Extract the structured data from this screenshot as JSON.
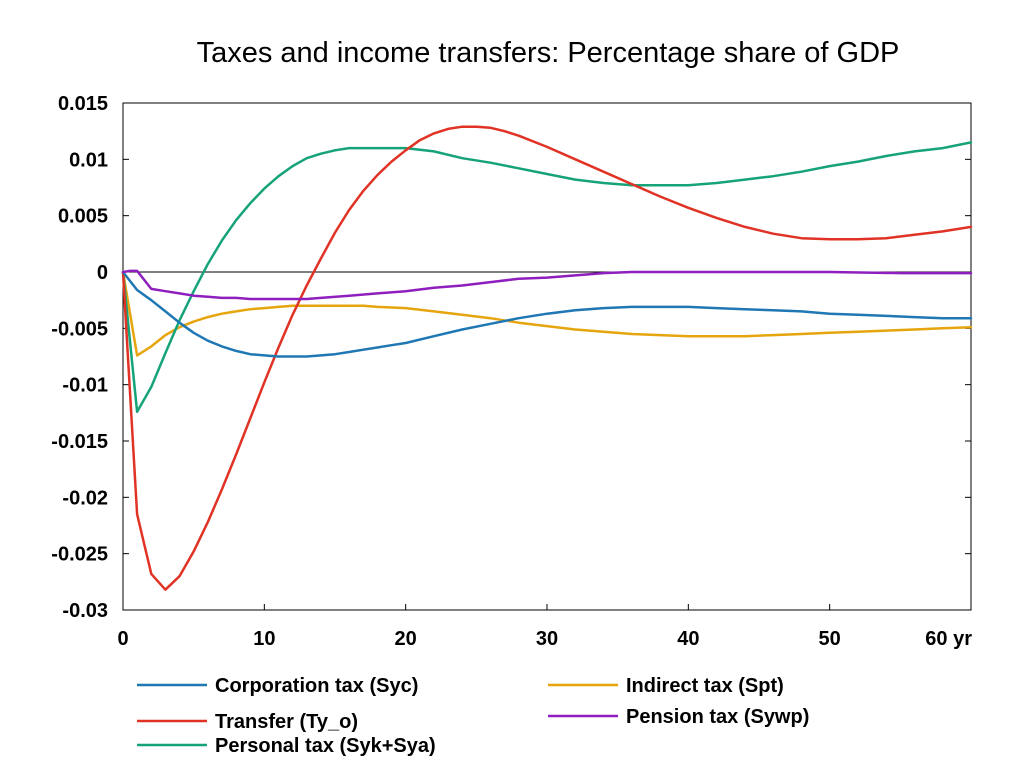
{
  "chart_data": {
    "type": "line",
    "title": "Taxes and income transfers: Percentage share of GDP",
    "x_unit_label": "yr",
    "xlim": [
      0,
      60
    ],
    "ylim": [
      -0.03,
      0.015
    ],
    "x_ticks": [
      0,
      10,
      20,
      30,
      40,
      50,
      60
    ],
    "x_tick_labels": [
      "0",
      "10",
      "20",
      "30",
      "40",
      "50",
      "60 yr"
    ],
    "y_ticks": [
      0.015,
      0.01,
      0.005,
      0,
      -0.005,
      -0.01,
      -0.015,
      -0.02,
      -0.025,
      -0.03
    ],
    "y_tick_labels": [
      "0.015",
      "0.01",
      "0.005",
      "0",
      "-0.005",
      "-0.01",
      "-0.015",
      "-0.02",
      "-0.025",
      "-0.03"
    ],
    "zero_line": true,
    "grid": false,
    "legend_position": "bottom",
    "series": [
      {
        "name": "Corporation tax (Syc)",
        "color": "#1f77b4",
        "x": [
          0,
          1,
          2,
          3,
          4,
          5,
          6,
          7,
          8,
          9,
          10,
          11,
          12,
          13,
          14,
          15,
          16,
          17,
          18,
          19,
          20,
          22,
          24,
          26,
          28,
          30,
          32,
          34,
          36,
          38,
          40,
          42,
          44,
          46,
          48,
          50,
          52,
          54,
          56,
          58,
          60
        ],
        "y": [
          0,
          -0.0016,
          -0.0025,
          -0.0035,
          -0.0045,
          -0.0054,
          -0.0061,
          -0.0066,
          -0.007,
          -0.0073,
          -0.0074,
          -0.0075,
          -0.0075,
          -0.0075,
          -0.0074,
          -0.0073,
          -0.0071,
          -0.0069,
          -0.0067,
          -0.0065,
          -0.0063,
          -0.0057,
          -0.0051,
          -0.0046,
          -0.0041,
          -0.0037,
          -0.0034,
          -0.0032,
          -0.0031,
          -0.0031,
          -0.0031,
          -0.0032,
          -0.0033,
          -0.0034,
          -0.0035,
          -0.0037,
          -0.0038,
          -0.0039,
          -0.004,
          -0.0041,
          -0.0041
        ]
      },
      {
        "name": "Transfer (Ty_o)",
        "color": "#e03325",
        "x": [
          0,
          1,
          2,
          3,
          4,
          5,
          6,
          7,
          8,
          9,
          10,
          11,
          12,
          13,
          14,
          15,
          16,
          17,
          18,
          19,
          20,
          21,
          22,
          23,
          24,
          25,
          26,
          27,
          28,
          30,
          32,
          34,
          36,
          38,
          40,
          42,
          44,
          46,
          48,
          50,
          52,
          54,
          56,
          58,
          60
        ],
        "y": [
          0,
          -0.0215,
          -0.0268,
          -0.0282,
          -0.027,
          -0.0248,
          -0.0222,
          -0.0193,
          -0.0162,
          -0.013,
          -0.0098,
          -0.0067,
          -0.0038,
          -0.0012,
          0.0012,
          0.0035,
          0.0055,
          0.0072,
          0.0086,
          0.0098,
          0.0108,
          0.0117,
          0.0123,
          0.0127,
          0.0129,
          0.0129,
          0.0128,
          0.0125,
          0.0121,
          0.0111,
          0.01,
          0.0089,
          0.0078,
          0.0067,
          0.0057,
          0.0048,
          0.004,
          0.0034,
          0.003,
          0.0029,
          0.0029,
          0.003,
          0.0033,
          0.0036,
          0.004
        ]
      },
      {
        "name": "Personal tax (Syk+Sya)",
        "color": "#16a37a",
        "x": [
          0,
          1,
          2,
          3,
          4,
          5,
          6,
          7,
          8,
          9,
          10,
          11,
          12,
          13,
          14,
          15,
          16,
          17,
          18,
          19,
          20,
          22,
          24,
          26,
          28,
          30,
          32,
          34,
          36,
          38,
          40,
          42,
          44,
          46,
          48,
          50,
          52,
          54,
          56,
          58,
          60
        ],
        "y": [
          0,
          -0.0124,
          -0.0102,
          -0.0072,
          -0.0043,
          -0.0017,
          0.0007,
          0.0028,
          0.0046,
          0.0061,
          0.0074,
          0.0085,
          0.0094,
          0.0101,
          0.0105,
          0.0108,
          0.011,
          0.011,
          0.011,
          0.011,
          0.011,
          0.0107,
          0.0101,
          0.0097,
          0.0092,
          0.0087,
          0.0082,
          0.0079,
          0.0077,
          0.0077,
          0.0077,
          0.0079,
          0.0082,
          0.0085,
          0.0089,
          0.0094,
          0.0098,
          0.0103,
          0.0107,
          0.011,
          0.0115
        ]
      },
      {
        "name": "Indirect tax (Spt)",
        "color": "#e6a50e",
        "x": [
          0,
          1,
          2,
          3,
          4,
          5,
          6,
          7,
          8,
          9,
          10,
          11,
          12,
          13,
          14,
          15,
          16,
          17,
          18,
          20,
          22,
          24,
          26,
          28,
          30,
          32,
          34,
          36,
          38,
          40,
          42,
          44,
          46,
          48,
          50,
          52,
          54,
          56,
          58,
          60
        ],
        "y": [
          0,
          -0.0074,
          -0.0066,
          -0.0056,
          -0.0049,
          -0.0044,
          -0.004,
          -0.0037,
          -0.0035,
          -0.0033,
          -0.0032,
          -0.0031,
          -0.003,
          -0.003,
          -0.003,
          -0.003,
          -0.003,
          -0.003,
          -0.0031,
          -0.0032,
          -0.0035,
          -0.0038,
          -0.0041,
          -0.0045,
          -0.0048,
          -0.0051,
          -0.0053,
          -0.0055,
          -0.0056,
          -0.0057,
          -0.0057,
          -0.0057,
          -0.0056,
          -0.0055,
          -0.0054,
          -0.0053,
          -0.0052,
          -0.0051,
          -0.005,
          -0.0049
        ]
      },
      {
        "name": "Pension tax (Sywp)",
        "color": "#8e1fbe",
        "x": [
          0,
          0.5,
          1,
          2,
          3,
          4,
          5,
          6,
          7,
          8,
          9,
          10,
          11,
          12,
          13,
          14,
          16,
          18,
          20,
          22,
          24,
          26,
          28,
          30,
          32,
          34,
          36,
          38,
          40,
          45,
          50,
          55,
          60
        ],
        "y": [
          0,
          0.0001,
          0.0001,
          -0.0015,
          -0.0017,
          -0.0019,
          -0.0021,
          -0.0022,
          -0.0023,
          -0.0023,
          -0.0024,
          -0.0024,
          -0.0024,
          -0.0024,
          -0.0024,
          -0.0023,
          -0.0021,
          -0.0019,
          -0.0017,
          -0.0014,
          -0.0012,
          -0.0009,
          -0.0006,
          -0.0005,
          -0.0003,
          -0.0001,
          0,
          0,
          0,
          0,
          0,
          -0.0001,
          -0.0001
        ]
      }
    ]
  }
}
